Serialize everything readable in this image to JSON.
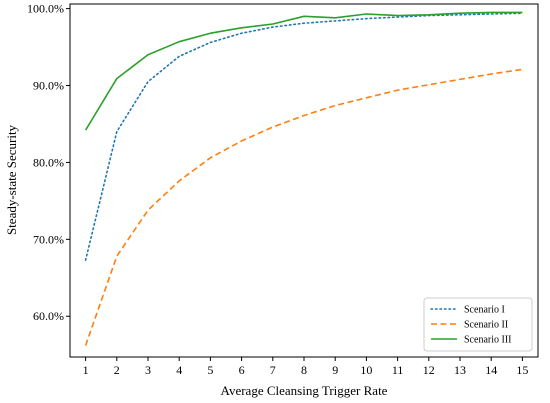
{
  "chart_data": {
    "type": "line",
    "xlabel": "Average Cleansing Trigger Rate",
    "ylabel": "Steady-state Security",
    "x": [
      1,
      2,
      3,
      4,
      5,
      6,
      7,
      8,
      9,
      10,
      11,
      12,
      13,
      14,
      15
    ],
    "xlim": [
      0.5,
      15.5
    ],
    "ylim": [
      54.7,
      100.6
    ],
    "x_ticks": [
      "1",
      "2",
      "3",
      "4",
      "5",
      "6",
      "7",
      "8",
      "9",
      "10",
      "11",
      "12",
      "13",
      "14",
      "15"
    ],
    "y_ticks": [
      {
        "value": 60,
        "label": "60.0%"
      },
      {
        "value": 70,
        "label": "70.0%"
      },
      {
        "value": 80,
        "label": "80.0%"
      },
      {
        "value": 90,
        "label": "90.0%"
      },
      {
        "value": 100,
        "label": "100.0%"
      }
    ],
    "grid": false,
    "legend_position": "bottom-right",
    "series": [
      {
        "name": "Scenario I",
        "color": "#1f77b4",
        "dash": "dotted",
        "values": [
          67.3,
          84.0,
          90.5,
          93.8,
          95.6,
          96.8,
          97.6,
          98.1,
          98.4,
          98.7,
          98.9,
          99.1,
          99.2,
          99.3,
          99.4
        ]
      },
      {
        "name": "Scenario II",
        "color": "#ff7f0e",
        "dash": "dashed",
        "values": [
          56.2,
          67.8,
          73.8,
          77.6,
          80.6,
          82.8,
          84.6,
          86.1,
          87.4,
          88.4,
          89.4,
          90.1,
          90.8,
          91.5,
          92.1
        ]
      },
      {
        "name": "Scenario III",
        "color": "#2ca02c",
        "dash": "solid",
        "values": [
          84.2,
          90.9,
          94.0,
          95.7,
          96.8,
          97.5,
          98.0,
          99.0,
          98.8,
          99.3,
          99.1,
          99.2,
          99.4,
          99.5,
          99.5
        ]
      }
    ]
  }
}
